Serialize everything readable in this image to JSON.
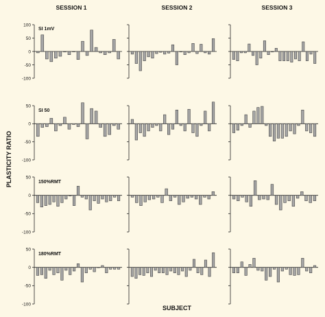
{
  "figure": {
    "ylabel": "PLASTICITY RATIO",
    "xlabel": "SUBJECT",
    "sessions": [
      "SESSION 1",
      "SESSION 2",
      "SESSION 3"
    ],
    "rows": [
      "SI 1mV",
      "SI 50",
      "150%RMT",
      "180%RMT"
    ]
  },
  "chart_data": [
    {
      "type": "bar",
      "row": "SI 1mV",
      "session": "SESSION 1",
      "ylim": [
        -100,
        100
      ],
      "yticks": [
        100,
        50,
        0,
        -50,
        -100
      ],
      "values": [
        -5,
        62,
        -28,
        -38,
        -25,
        -18,
        -2,
        -12,
        0,
        -30,
        38,
        -15,
        80,
        15,
        -5,
        -12,
        -5,
        45,
        -28
      ]
    },
    {
      "type": "bar",
      "row": "SI 1mV",
      "session": "SESSION 2",
      "ylim": [
        -100,
        100
      ],
      "yticks": [
        100,
        50,
        0,
        -50,
        -100
      ],
      "values": [
        -10,
        -45,
        -72,
        -35,
        -20,
        -25,
        -8,
        -3,
        -10,
        -6,
        25,
        -50,
        -2,
        -12,
        -5,
        30,
        -8,
        27,
        -5,
        -10,
        48
      ]
    },
    {
      "type": "bar",
      "row": "SI 1mV",
      "session": "SESSION 3",
      "ylim": [
        -100,
        100
      ],
      "yticks": [
        100,
        50,
        0,
        -50,
        -100
      ],
      "values": [
        -30,
        -35,
        -5,
        -5,
        28,
        -15,
        -50,
        -25,
        40,
        -12,
        -2,
        12,
        -35,
        -35,
        -35,
        -40,
        -28,
        -35,
        36,
        -35,
        -10,
        -45
      ]
    },
    {
      "type": "bar",
      "row": "SI 50",
      "session": "SESSION 1",
      "ylim": [
        -100,
        50
      ],
      "yticks": [
        50,
        0,
        -50,
        -100
      ],
      "values": [
        -35,
        -10,
        -8,
        15,
        -20,
        -5,
        18,
        -15,
        -2,
        -8,
        58,
        -42,
        42,
        35,
        -10,
        -35,
        -30,
        -5,
        -15
      ]
    },
    {
      "type": "bar",
      "row": "SI 50",
      "session": "SESSION 2",
      "ylim": [
        -100,
        50
      ],
      "yticks": [
        50,
        0,
        -50,
        -100
      ],
      "values": [
        12,
        -45,
        -25,
        -35,
        -20,
        -10,
        -5,
        -20,
        25,
        -30,
        -15,
        38,
        -5,
        -20,
        40,
        -25,
        -35,
        -5,
        35,
        -20,
        60
      ]
    },
    {
      "type": "bar",
      "row": "SI 50",
      "session": "SESSION 3",
      "ylim": [
        -100,
        50
      ],
      "yticks": [
        50,
        0,
        -50,
        -100
      ],
      "values": [
        -25,
        -18,
        -5,
        25,
        -10,
        35,
        45,
        48,
        -5,
        -35,
        -48,
        -40,
        -40,
        -35,
        -20,
        -28,
        -5,
        38,
        -20,
        -25,
        -35
      ]
    },
    {
      "type": "bar",
      "row": "150%RMT",
      "session": "SESSION 1",
      "ylim": [
        -100,
        50
      ],
      "yticks": [
        50,
        0,
        -50,
        -100
      ],
      "values": [
        -20,
        -32,
        -28,
        -25,
        -18,
        -30,
        -20,
        -10,
        -2,
        -28,
        25,
        -5,
        -10,
        -40,
        -15,
        -22,
        -10,
        -18,
        -15,
        -5,
        -15
      ]
    },
    {
      "type": "bar",
      "row": "150%RMT",
      "session": "SESSION 2",
      "ylim": [
        -100,
        50
      ],
      "yticks": [
        50,
        0,
        -50,
        -100
      ],
      "values": [
        -5,
        -20,
        -28,
        -18,
        -12,
        -10,
        -5,
        -20,
        18,
        -15,
        -5,
        -25,
        -18,
        -8,
        -5,
        -10,
        -25,
        -5,
        -10,
        10
      ]
    },
    {
      "type": "bar",
      "row": "150%RMT",
      "session": "SESSION 3",
      "ylim": [
        -100,
        50
      ],
      "yticks": [
        50,
        0,
        -50,
        -100
      ],
      "values": [
        -10,
        -15,
        -5,
        -18,
        -30,
        40,
        -12,
        -10,
        -12,
        30,
        -25,
        -40,
        -20,
        -15,
        -30,
        -8,
        10,
        -15,
        -20,
        -15
      ]
    },
    {
      "type": "bar",
      "row": "180%RMT",
      "session": "SESSION 1",
      "ylim": [
        -100,
        50
      ],
      "yticks": [
        50,
        0,
        -50,
        -100
      ],
      "values": [
        -22,
        -20,
        -30,
        -8,
        -20,
        -15,
        -35,
        -8,
        -20,
        -10,
        10,
        -40,
        -15,
        -5,
        -12,
        0,
        5,
        -15,
        -5,
        -5,
        -5
      ]
    },
    {
      "type": "bar",
      "row": "180%RMT",
      "session": "SESSION 2",
      "ylim": [
        -100,
        50
      ],
      "yticks": [
        50,
        0,
        -50,
        -100
      ],
      "values": [
        -25,
        -30,
        -20,
        -22,
        -15,
        -25,
        -8,
        -15,
        -15,
        -20,
        -10,
        -15,
        -20,
        -10,
        -25,
        -8,
        22,
        -15,
        -20,
        20,
        -25,
        40
      ]
    },
    {
      "type": "bar",
      "row": "180%RMT",
      "session": "SESSION 3",
      "ylim": [
        -100,
        50
      ],
      "yticks": [
        50,
        0,
        -50,
        -100
      ],
      "values": [
        -15,
        -15,
        15,
        -22,
        8,
        25,
        -8,
        -10,
        -35,
        -25,
        -5,
        -40,
        -10,
        -5,
        -20,
        -22,
        -20,
        25,
        -10,
        -15,
        5
      ]
    }
  ]
}
